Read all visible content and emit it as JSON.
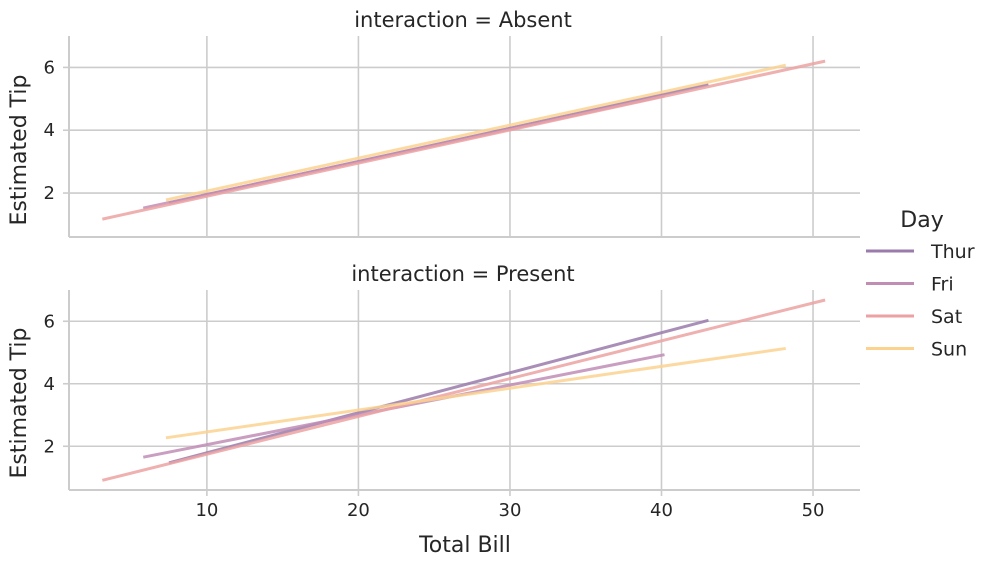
{
  "chart_data": {
    "type": "line",
    "x_axis_label": "Total Bill",
    "y_axis_label": "Estimated Tip",
    "xlim": [
      0.9,
      53.1
    ],
    "ylim": [
      0.6,
      7.0
    ],
    "x_ticks": [
      10,
      20,
      30,
      40,
      50
    ],
    "y_ticks": [
      2,
      4,
      6
    ],
    "grid": true,
    "legend": {
      "title": "Day",
      "placement": "right",
      "entries": [
        "Thur",
        "Fri",
        "Sat",
        "Sun"
      ]
    },
    "series_colors": {
      "Thur": "#9a7bab",
      "Fri": "#c08db5",
      "Sat": "#eca2a2",
      "Sun": "#fcd28f"
    },
    "panels": [
      {
        "title": "interaction = Absent",
        "series": [
          {
            "name": "Thur",
            "x": [
              7.5,
              43.1
            ],
            "y": [
              1.68,
              5.45
            ]
          },
          {
            "name": "Fri",
            "x": [
              5.8,
              40.2
            ],
            "y": [
              1.52,
              5.1
            ]
          },
          {
            "name": "Sat",
            "x": [
              3.1,
              50.8
            ],
            "y": [
              1.17,
              6.2
            ]
          },
          {
            "name": "Sun",
            "x": [
              7.3,
              48.2
            ],
            "y": [
              1.78,
              6.07
            ]
          }
        ]
      },
      {
        "title": "interaction = Present",
        "series": [
          {
            "name": "Thur",
            "x": [
              7.5,
              43.1
            ],
            "y": [
              1.47,
              6.03
            ]
          },
          {
            "name": "Fri",
            "x": [
              5.8,
              40.2
            ],
            "y": [
              1.65,
              4.93
            ]
          },
          {
            "name": "Sat",
            "x": [
              3.1,
              50.8
            ],
            "y": [
              0.91,
              6.68
            ]
          },
          {
            "name": "Sun",
            "x": [
              7.3,
              48.2
            ],
            "y": [
              2.27,
              5.13
            ]
          }
        ]
      }
    ]
  }
}
